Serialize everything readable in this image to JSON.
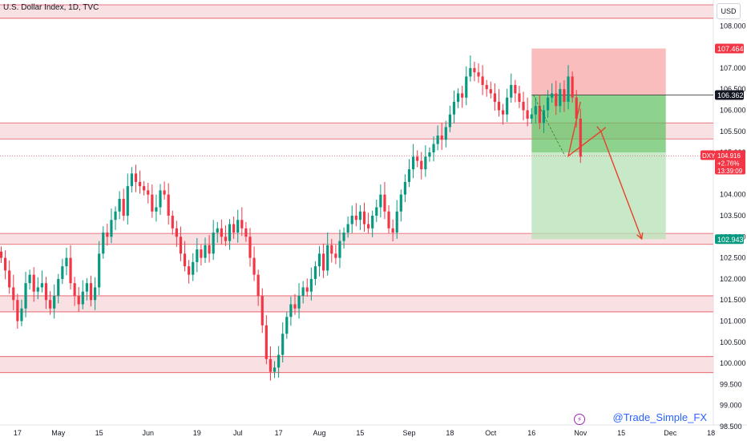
{
  "title": "U.S. Dollar Index, 1D, TVC",
  "currency": "USD",
  "handle": "@Trade_Simple_FX",
  "colors": {
    "up": "#089981",
    "down": "#f23645",
    "zone": "#f7d6d9",
    "zone_line": "#e35560",
    "stop": "#f7a7a7",
    "target": "#b6e2b6",
    "target_dark": "#5cc15c",
    "arrow": "#e8412b"
  },
  "chart_data": {
    "type": "candlestick",
    "ylim": [
      98.5,
      108.5
    ],
    "yticks": [
      {
        "v": 108.0,
        "t": "108.000"
      },
      {
        "v": 107.0,
        "t": "107.000"
      },
      {
        "v": 106.5,
        "t": "106.500"
      },
      {
        "v": 106.0,
        "t": "106.000"
      },
      {
        "v": 105.5,
        "t": "105.500"
      },
      {
        "v": 105.0,
        "t": "105.000"
      },
      {
        "v": 104.0,
        "t": "104.000"
      },
      {
        "v": 103.5,
        "t": "103.500"
      },
      {
        "v": 103.0,
        "t": "103.000"
      },
      {
        "v": 102.5,
        "t": "102.500"
      },
      {
        "v": 102.0,
        "t": "102.000"
      },
      {
        "v": 101.5,
        "t": "101.500"
      },
      {
        "v": 101.0,
        "t": "101.000"
      },
      {
        "v": 100.5,
        "t": "100.500"
      },
      {
        "v": 100.0,
        "t": "100.000"
      },
      {
        "v": 99.5,
        "t": "99.500"
      },
      {
        "v": 99.0,
        "t": "99.000"
      },
      {
        "v": 98.5,
        "t": "98.500"
      }
    ],
    "xticks": [
      {
        "i": 4,
        "t": "17"
      },
      {
        "i": 14,
        "t": "May"
      },
      {
        "i": 24,
        "t": "15"
      },
      {
        "i": 36,
        "t": "Jun"
      },
      {
        "i": 48,
        "t": "19"
      },
      {
        "i": 58,
        "t": "Jul"
      },
      {
        "i": 68,
        "t": "17"
      },
      {
        "i": 78,
        "t": "Aug"
      },
      {
        "i": 88,
        "t": "15"
      },
      {
        "i": 100,
        "t": "Sep"
      },
      {
        "i": 110,
        "t": "18"
      },
      {
        "i": 120,
        "t": "Oct"
      },
      {
        "i": 130,
        "t": "16"
      },
      {
        "i": 142,
        "t": "Nov"
      },
      {
        "i": 152,
        "t": "15"
      },
      {
        "i": 164,
        "t": "Dec"
      },
      {
        "i": 174,
        "t": "18"
      }
    ],
    "x_count": 180,
    "closes": [
      102.5,
      102.2,
      101.8,
      101.5,
      101.0,
      101.3,
      101.9,
      102.1,
      101.7,
      101.8,
      101.9,
      101.5,
      101.3,
      101.6,
      102.0,
      102.3,
      102.5,
      101.9,
      101.6,
      101.4,
      101.7,
      101.9,
      101.5,
      101.8,
      102.6,
      103.1,
      103.0,
      103.4,
      103.6,
      103.9,
      103.5,
      104.2,
      104.5,
      104.3,
      104.2,
      104.1,
      104.0,
      103.6,
      103.7,
      104.1,
      104.0,
      103.5,
      103.2,
      103.0,
      102.6,
      102.3,
      102.1,
      102.4,
      102.7,
      102.5,
      102.8,
      102.6,
      103.1,
      103.2,
      103.0,
      102.9,
      103.3,
      103.1,
      103.4,
      103.2,
      103.0,
      102.5,
      102.1,
      101.6,
      100.9,
      100.1,
      99.8,
      99.9,
      100.2,
      100.7,
      101.1,
      101.4,
      101.3,
      101.6,
      101.8,
      101.7,
      102.0,
      102.3,
      102.6,
      102.2,
      102.8,
      102.6,
      102.5,
      102.9,
      103.1,
      103.3,
      103.5,
      103.4,
      103.6,
      103.3,
      103.2,
      103.5,
      103.7,
      104.0,
      103.6,
      103.2,
      103.1,
      103.6,
      104.0,
      104.3,
      104.6,
      104.9,
      104.8,
      104.6,
      104.9,
      105.0,
      105.2,
      105.4,
      105.3,
      105.6,
      105.9,
      106.2,
      106.4,
      106.3,
      106.8,
      107.0,
      106.9,
      106.8,
      106.6,
      106.5,
      106.4,
      106.2,
      106.0,
      105.9,
      106.3,
      106.6,
      106.4,
      106.2,
      106.0,
      105.8,
      105.9,
      106.1,
      105.7,
      106.0,
      106.3,
      106.4,
      106.1,
      106.5,
      106.2,
      106.8,
      106.3,
      105.8,
      104.9
    ],
    "zones": [
      [
        108.18,
        108.5
      ],
      [
        105.32,
        105.7
      ],
      [
        102.82,
        103.08
      ],
      [
        101.22,
        101.6
      ],
      [
        99.78,
        100.16
      ]
    ],
    "position": {
      "x_start": 131,
      "x_end": 158,
      "stop": 107.464,
      "entry": 106.362,
      "target": 102.943,
      "mid_level": 104.916,
      "mid_line": 105.0
    },
    "projection": [
      [
        139,
        104.916
      ],
      [
        147,
        105.5
      ],
      [
        157,
        102.95
      ]
    ],
    "price_labels": [
      {
        "v": 107.464,
        "t": "107.464",
        "bg": "#f23645"
      },
      {
        "v": 106.362,
        "t": "106.362",
        "bg": "#131722"
      },
      {
        "v": 102.943,
        "t": "102.943",
        "bg": "#089981"
      }
    ],
    "current": {
      "v": 104.916,
      "symbol": "DXY",
      "price": "104.916",
      "change": "+2.76%",
      "timer": "13:39:09"
    }
  }
}
